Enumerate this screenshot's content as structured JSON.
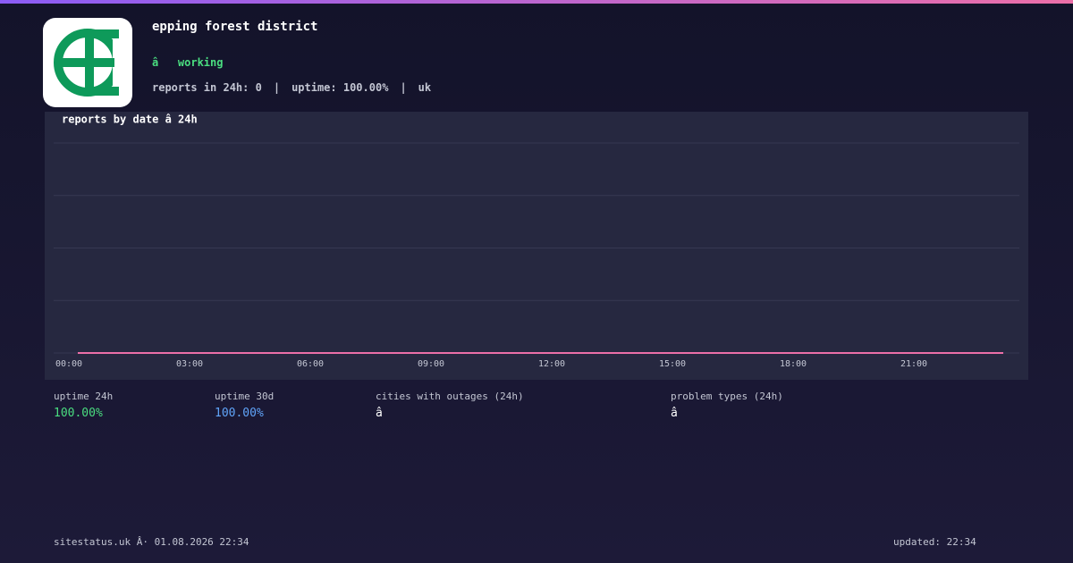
{
  "header": {
    "title": "epping forest district",
    "status": "â   working",
    "stats": [
      "reports in 24h: 0",
      "uptime: 100.00%",
      "uk"
    ],
    "separator": "|"
  },
  "chart_data": {
    "type": "line",
    "title": "reports by date â   24h",
    "x": [
      0,
      1,
      2,
      3,
      4,
      5,
      6,
      7,
      8,
      9,
      10,
      11,
      12,
      13,
      14,
      15,
      16,
      17,
      18,
      19,
      20,
      21,
      22,
      23
    ],
    "series": [
      {
        "color": "#ec6fa8",
        "values": [
          0,
          0,
          0,
          0,
          0,
          0,
          0,
          0,
          0,
          0,
          0,
          0,
          0,
          0,
          0,
          0,
          0,
          0,
          0,
          0,
          0,
          0,
          0,
          0
        ]
      }
    ],
    "xlim": [
      0,
      23
    ],
    "xticks": [
      {
        "value": 0,
        "label": "00:00"
      },
      {
        "value": 3,
        "label": "03:00"
      },
      {
        "value": 6,
        "label": "06:00"
      },
      {
        "value": 9,
        "label": "09:00"
      },
      {
        "value": 12,
        "label": "12:00"
      },
      {
        "value": 15,
        "label": "15:00"
      },
      {
        "value": 18,
        "label": "18:00"
      },
      {
        "value": 21,
        "label": "21:00"
      }
    ],
    "ylim": [
      0,
      4
    ],
    "grid": true
  },
  "summary": [
    {
      "label": "uptime 24h",
      "value": "100.00%"
    },
    {
      "label": "uptime 30d",
      "value": "100.00%"
    },
    {
      "label": "cities with outages (24h)",
      "value": "â"
    },
    {
      "label": "problem types (24h)",
      "value": "â"
    }
  ],
  "footer": {
    "source": "sitestatus.uk Â· 01.08.2026 22:34",
    "updated": "updated: 22:34"
  }
}
